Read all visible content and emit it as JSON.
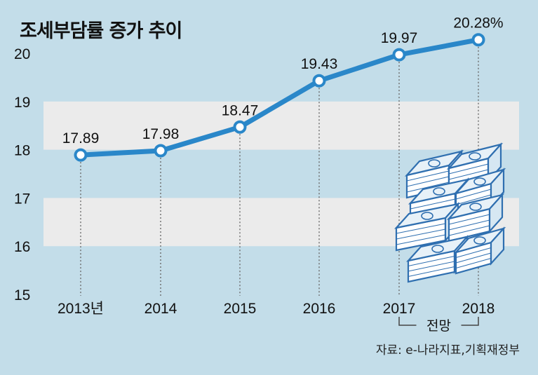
{
  "title": "조세부담률 증가 추이",
  "source": "자료: e-나라지표,기획재정부",
  "forecast_label": "전망",
  "colors": {
    "background": "#c3dde9",
    "band": "#ebebeb",
    "line": "#2a87c9",
    "marker_fill": "#ffffff",
    "text": "#111111",
    "money": "#2f6fb0"
  },
  "illustration": {
    "icon": "money-stacks-icon"
  },
  "chart_data": {
    "type": "line",
    "categories": [
      "2013년",
      "2014",
      "2015",
      "2016",
      "2017",
      "2018"
    ],
    "values": [
      17.89,
      17.98,
      18.47,
      19.43,
      19.97,
      20.28
    ],
    "data_labels": [
      "17.89",
      "17.98",
      "18.47",
      "19.43",
      "19.97",
      "20.28%"
    ],
    "ylim": [
      15,
      20
    ],
    "yticks": [
      15,
      16,
      17,
      18,
      19,
      20
    ],
    "ytick_labels": [
      "15",
      "16",
      "17",
      "18",
      "19",
      "20"
    ],
    "forecast_categories": [
      "2017",
      "2018"
    ],
    "grid": "alternating horizontal bands",
    "xlabel": "",
    "ylabel": ""
  }
}
